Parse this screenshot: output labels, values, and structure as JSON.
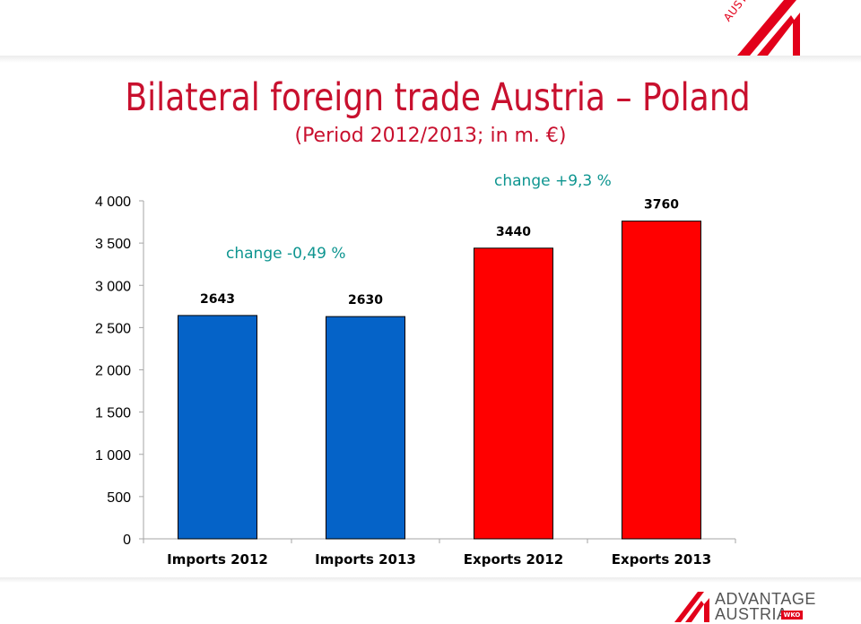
{
  "branding": {
    "top_logo_text": "AUSTRIA",
    "bottom_logo_line1": "ADVANTAGE",
    "bottom_logo_line2": "AUSTRIA",
    "bottom_logo_badge": "WKO",
    "brand_color": "#e2001a"
  },
  "header": {
    "title": "Bilateral foreign trade Austria – Poland",
    "subtitle": "(Period 2012/2013; in m. €)"
  },
  "chart_data": {
    "type": "bar",
    "title": "",
    "xlabel": "",
    "ylabel": "",
    "categories": [
      "Imports 2012",
      "Imports 2013",
      "Exports 2012",
      "Exports 2013"
    ],
    "values": [
      2643,
      2630,
      3440,
      3760
    ],
    "value_labels": [
      "2643",
      "2630",
      "3440",
      "3760"
    ],
    "bar_colors": [
      "#0563c8",
      "#0563c8",
      "#ff0000",
      "#ff0000"
    ],
    "ylim": [
      0,
      4000
    ],
    "yticks": [
      0,
      500,
      1000,
      1500,
      2000,
      2500,
      3000,
      3500,
      4000
    ],
    "ytick_labels": [
      "0",
      "500",
      "1 000",
      "1 500",
      "2 000",
      "2 500",
      "3 000",
      "3 500",
      "4 000"
    ],
    "grid": false,
    "legend": "none",
    "annotations": [
      {
        "text": "change -0,49 %",
        "color": "#0e9590"
      },
      {
        "text": "change +9,3 %",
        "color": "#0e9590"
      }
    ]
  }
}
